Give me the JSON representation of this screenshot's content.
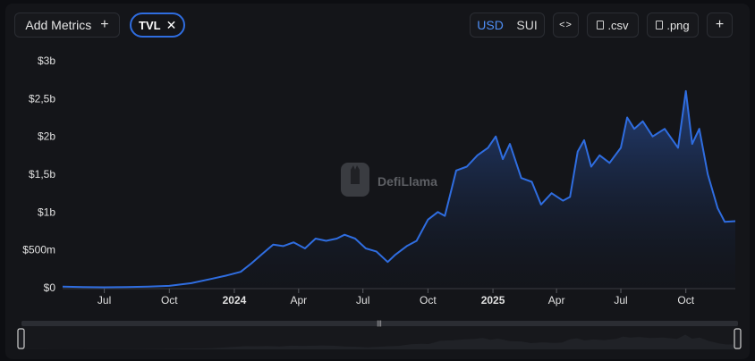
{
  "toolbar": {
    "add_metrics_label": "Add Metrics",
    "add_metrics_icon": "plus-icon",
    "metric_chip_label": "TVL",
    "metric_chip_icon": "close-icon",
    "currency_options": [
      "USD",
      "SUI"
    ],
    "currency_selected": "USD",
    "embed_icon": "code-icon",
    "csv_label": ".csv",
    "png_label": ".png",
    "add_icon": "plus-icon"
  },
  "watermark": {
    "text": "DefiLlama"
  },
  "colors": {
    "line": "#2f6de0",
    "accent": "#4f8ff7",
    "chip_border": "#2f6de0"
  },
  "chart_data": {
    "type": "area",
    "title": "",
    "xlabel": "",
    "ylabel": "",
    "ylim": [
      0,
      3000000000
    ],
    "grid": false,
    "legend": "none",
    "y_ticks": [
      {
        "value": 0,
        "label": "$0"
      },
      {
        "value": 500000000,
        "label": "$500m"
      },
      {
        "value": 1000000000,
        "label": "$1b"
      },
      {
        "value": 1500000000,
        "label": "$1,5b"
      },
      {
        "value": 2000000000,
        "label": "$2b"
      },
      {
        "value": 2500000000,
        "label": "$2,5b"
      },
      {
        "value": 3000000000,
        "label": "$3b"
      }
    ],
    "x_ticks": [
      {
        "date": "2023-07-01",
        "label": "Jul",
        "bold": false
      },
      {
        "date": "2023-10-01",
        "label": "Oct",
        "bold": false
      },
      {
        "date": "2024-01-01",
        "label": "2024",
        "bold": true
      },
      {
        "date": "2024-04-01",
        "label": "Apr",
        "bold": false
      },
      {
        "date": "2024-07-01",
        "label": "Jul",
        "bold": false
      },
      {
        "date": "2024-10-01",
        "label": "Oct",
        "bold": false
      },
      {
        "date": "2025-01-01",
        "label": "2025",
        "bold": true
      },
      {
        "date": "2025-04-01",
        "label": "Apr",
        "bold": false
      },
      {
        "date": "2025-07-01",
        "label": "Jul",
        "bold": false
      },
      {
        "date": "2025-10-01",
        "label": "Oct",
        "bold": false
      }
    ],
    "x_range": [
      "2023-05-03",
      "2025-12-10"
    ],
    "series": [
      {
        "unit": "USD",
        "points": [
          [
            "2023-05-03",
            15000000
          ],
          [
            "2023-06-01",
            8000000
          ],
          [
            "2023-07-01",
            6000000
          ],
          [
            "2023-08-01",
            10000000
          ],
          [
            "2023-09-01",
            15000000
          ],
          [
            "2023-10-01",
            25000000
          ],
          [
            "2023-11-01",
            60000000
          ],
          [
            "2023-12-01",
            120000000
          ],
          [
            "2023-12-20",
            160000000
          ],
          [
            "2024-01-10",
            210000000
          ],
          [
            "2024-01-25",
            320000000
          ],
          [
            "2024-02-10",
            450000000
          ],
          [
            "2024-02-25",
            570000000
          ],
          [
            "2024-03-10",
            550000000
          ],
          [
            "2024-03-25",
            600000000
          ],
          [
            "2024-04-10",
            520000000
          ],
          [
            "2024-04-25",
            650000000
          ],
          [
            "2024-05-10",
            620000000
          ],
          [
            "2024-05-25",
            650000000
          ],
          [
            "2024-06-05",
            700000000
          ],
          [
            "2024-06-20",
            650000000
          ],
          [
            "2024-07-05",
            520000000
          ],
          [
            "2024-07-20",
            480000000
          ],
          [
            "2024-08-05",
            340000000
          ],
          [
            "2024-08-15",
            430000000
          ],
          [
            "2024-09-01",
            550000000
          ],
          [
            "2024-09-15",
            620000000
          ],
          [
            "2024-10-01",
            900000000
          ],
          [
            "2024-10-15",
            1000000000
          ],
          [
            "2024-10-25",
            950000000
          ],
          [
            "2024-11-10",
            1550000000
          ],
          [
            "2024-11-25",
            1600000000
          ],
          [
            "2024-12-10",
            1750000000
          ],
          [
            "2024-12-25",
            1850000000
          ],
          [
            "2025-01-05",
            2000000000
          ],
          [
            "2025-01-15",
            1700000000
          ],
          [
            "2025-01-25",
            1900000000
          ],
          [
            "2025-02-10",
            1450000000
          ],
          [
            "2025-02-25",
            1400000000
          ],
          [
            "2025-03-10",
            1100000000
          ],
          [
            "2025-03-25",
            1250000000
          ],
          [
            "2025-04-10",
            1150000000
          ],
          [
            "2025-04-20",
            1200000000
          ],
          [
            "2025-05-01",
            1800000000
          ],
          [
            "2025-05-10",
            1950000000
          ],
          [
            "2025-05-20",
            1600000000
          ],
          [
            "2025-06-01",
            1750000000
          ],
          [
            "2025-06-15",
            1650000000
          ],
          [
            "2025-07-01",
            1850000000
          ],
          [
            "2025-07-10",
            2250000000
          ],
          [
            "2025-07-20",
            2100000000
          ],
          [
            "2025-08-01",
            2200000000
          ],
          [
            "2025-08-15",
            2000000000
          ],
          [
            "2025-09-01",
            2100000000
          ],
          [
            "2025-09-20",
            1850000000
          ],
          [
            "2025-10-01",
            2600000000
          ],
          [
            "2025-10-10",
            1900000000
          ],
          [
            "2025-10-20",
            2100000000
          ],
          [
            "2025-11-01",
            1500000000
          ],
          [
            "2025-11-15",
            1050000000
          ],
          [
            "2025-11-25",
            870000000
          ],
          [
            "2025-12-10",
            880000000
          ]
        ]
      }
    ]
  }
}
